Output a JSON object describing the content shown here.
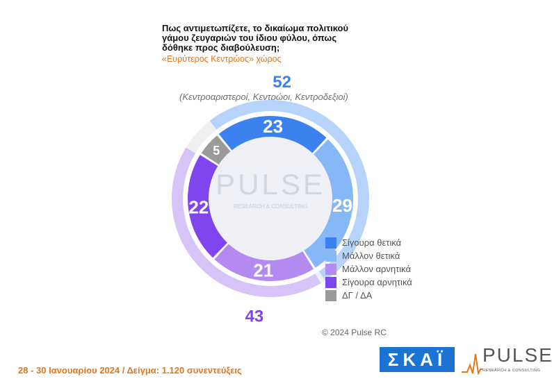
{
  "title": {
    "lines": [
      "Πως αντιμετωπίζετε, το δικαίωμα πολιτικού",
      "γάμου ζευγαριών του ίδιου φύλου, όπως",
      "δόθηκε προς διαβούλευση;"
    ],
    "subtitle": "«Ευρύτερος Κεντρώος» χώρος"
  },
  "note": "(Κεντροαριστεροί, Κεντρώοι, Κεντροδεξιοί)",
  "chart_data": {
    "type": "pie",
    "style": "donut",
    "series": [
      {
        "name": "Σίγουρα θετικά",
        "value": 23,
        "color": "#3b82ee"
      },
      {
        "name": "Μάλλον θετικά",
        "value": 29,
        "color": "#86b7f7"
      },
      {
        "name": "Μάλλον αρνητικά",
        "value": 21,
        "color": "#b28af0"
      },
      {
        "name": "Σίγουρα αρνητικά",
        "value": 22,
        "color": "#7f45ee"
      },
      {
        "name": "ΔΓ / ΔΑ",
        "value": 5,
        "color": "#9a9a9a"
      }
    ],
    "groups": [
      {
        "value": 52,
        "color": "#b6d3fb",
        "label_color": "#3b82ee"
      },
      {
        "value": 43,
        "color": "#d6c3f8",
        "label_color": "#7f45ee"
      }
    ],
    "legend_position": "bottom-right"
  },
  "watermark": {
    "brand": "PULSE",
    "tagline": "RESEARCH & CONSULTING"
  },
  "copyright": "© 2024 Pulse RC",
  "footer": {
    "text": "28 - 30 Ιανουαρίου 2024 / Δείγμα: 1.120 συνεντεύξεις"
  },
  "logos": {
    "skai": "ΣΚΑΪ",
    "pulse": "PULSE",
    "pulse_tagline": "RESEARCH & CONSULTING"
  }
}
